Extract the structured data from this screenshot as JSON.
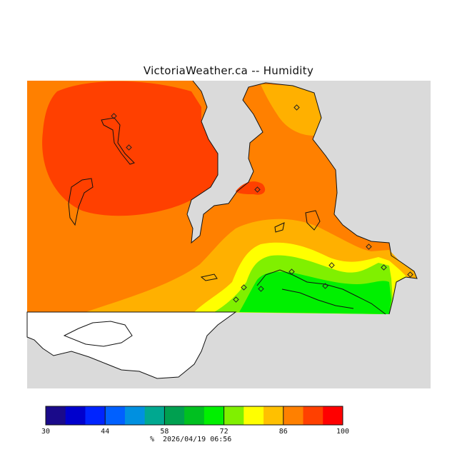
{
  "title": "VictoriaWeather.ca -- Humidity",
  "legend": {
    "ticks": [
      "30",
      "44",
      "58",
      "72",
      "86",
      "100"
    ],
    "units": "%",
    "timestamp": "2026/04/19 06:56",
    "colors": [
      "#1a0a8a",
      "#0000cd",
      "#0024ff",
      "#0060ff",
      "#0090e0",
      "#00a890",
      "#00a050",
      "#00c020",
      "#00f000",
      "#80f000",
      "#ffff00",
      "#ffc000",
      "#ff8000",
      "#ff4000",
      "#ff0000"
    ]
  },
  "map_colors": {
    "land_default": "#ff8000",
    "red_zone": "#ff4000",
    "yellow_orange": "#ffb000",
    "yellow": "#ffff00",
    "light_green": "#80f000",
    "green": "#00f000",
    "unmodelled_land": "#ffffff",
    "water": "#dadada"
  },
  "chart_data": {
    "type": "heatmap",
    "title": "VictoriaWeather.ca -- Humidity",
    "colorbar_range": [
      30,
      100
    ],
    "colorbar_ticks": [
      30,
      44,
      58,
      72,
      86,
      100
    ],
    "colorbar_bins": 15,
    "units": "%",
    "timestamp": "2026/04/19 06:56"
  }
}
